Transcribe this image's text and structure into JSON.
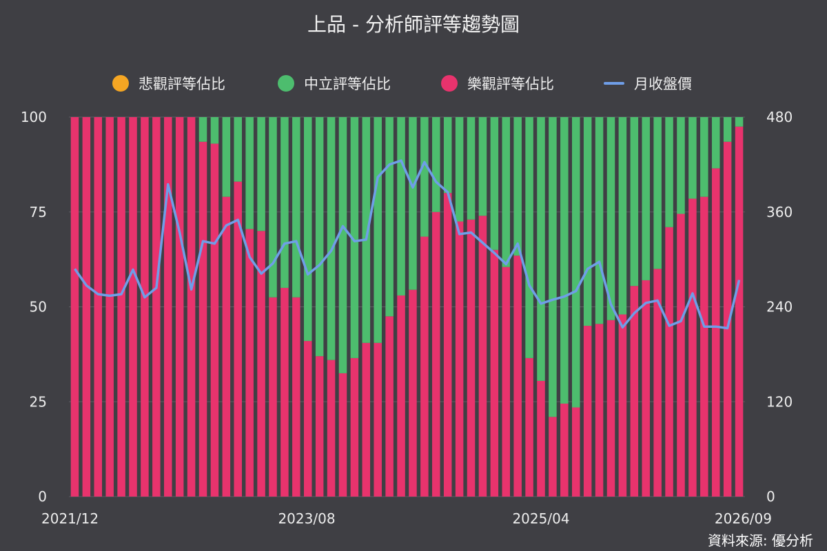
{
  "chart_data": {
    "type": "bar",
    "title": "上品 - 分析師評等趨勢圖",
    "stacked": true,
    "legend": [
      {
        "name": "悲觀評等佔比",
        "color": "#f5a623",
        "shape": "dot"
      },
      {
        "name": "中立評等佔比",
        "color": "#4dbd6e",
        "shape": "dot"
      },
      {
        "name": "樂觀評等佔比",
        "color": "#e8336d",
        "shape": "dot"
      },
      {
        "name": "月收盤價",
        "color": "#6f9ee8",
        "shape": "line"
      }
    ],
    "legend_position": "top",
    "x_tick_labels": [
      "2021/12",
      "2023/08",
      "2025/04",
      "2026/09"
    ],
    "y_left": {
      "ticks": [
        "0",
        "25",
        "50",
        "75",
        "100"
      ],
      "range": [
        0,
        100
      ]
    },
    "y_right": {
      "ticks": [
        "0",
        "120",
        "240",
        "360",
        "480"
      ],
      "range": [
        0,
        480
      ]
    },
    "grid": true,
    "optimistic_pct": [
      100,
      100,
      100,
      100,
      100,
      100,
      100,
      100,
      100,
      100,
      100,
      93.5,
      93,
      79,
      83,
      70.5,
      70,
      52.5,
      55,
      52.5,
      41,
      37,
      36,
      32.5,
      36.5,
      40.5,
      40.5,
      47.5,
      53,
      54.5,
      68.5,
      75,
      80,
      72.5,
      73,
      74,
      65,
      60.5,
      63.5,
      36.5,
      30.5,
      21,
      24.5,
      23.5,
      45,
      45.5,
      46.5,
      48,
      55.5,
      57,
      60,
      71,
      74.5,
      78.5,
      79,
      86.5,
      93.5,
      97.5
    ],
    "pessimistic_pct": [
      0,
      0,
      0,
      0,
      0,
      0,
      0,
      0,
      0,
      0,
      0,
      0,
      0,
      0,
      0,
      0,
      0,
      0,
      0,
      0,
      0,
      0,
      0,
      0,
      0,
      0,
      0,
      0,
      0,
      0,
      0,
      0,
      0,
      0,
      0,
      0,
      0,
      0,
      0,
      0,
      0,
      0,
      0,
      0,
      0,
      0,
      0,
      0,
      0,
      0,
      0,
      0,
      0,
      0,
      0,
      0,
      0,
      0
    ],
    "monthly_close": [
      288,
      267,
      256,
      254,
      256,
      287,
      252,
      264,
      395,
      334,
      262,
      323,
      320,
      343,
      350,
      303,
      282,
      295,
      320,
      323,
      281,
      293,
      311,
      342,
      323,
      325,
      404,
      420,
      425,
      391,
      423,
      398,
      385,
      332,
      334,
      321,
      308,
      294,
      320,
      267,
      244,
      249,
      253,
      260,
      288,
      297,
      243,
      214,
      232,
      245,
      248,
      216,
      222,
      257,
      215,
      215,
      213,
      274
    ]
  },
  "footer": {
    "source": "資料來源: 優分析"
  }
}
